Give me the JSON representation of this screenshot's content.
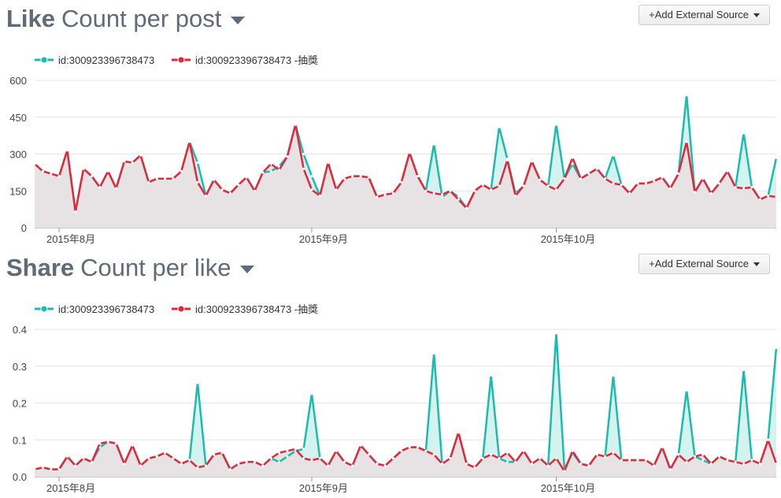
{
  "panels": [
    {
      "title_bold": "Like",
      "title_rest": " Count per post",
      "button_label": "+Add External Source"
    },
    {
      "title_bold": "Share",
      "title_rest": " Count per like",
      "button_label": "+Add External Source"
    }
  ],
  "colors": {
    "teal": "#1bbcad",
    "red": "#e4283c",
    "fill": "#e7e2e3",
    "teal_fill": "#d4f3ef",
    "grid": "#e6e6e6"
  },
  "chart_data": [
    {
      "type": "line",
      "y_ticks": [
        "0",
        "150",
        "300",
        "450",
        "600"
      ],
      "ylim": [
        0,
        600
      ],
      "x_tick_labels": [
        "2015年8月",
        "2015年9月",
        "2015年10月"
      ],
      "x_tick_index": [
        3,
        34,
        64
      ],
      "legend_placement": "top-left",
      "series": [
        {
          "name": "id:300923396738473",
          "color": "teal",
          "values": [
            260,
            230,
            220,
            210,
            315,
            65,
            240,
            210,
            165,
            230,
            160,
            270,
            265,
            295,
            185,
            200,
            200,
            200,
            230,
            350,
            265,
            130,
            195,
            155,
            140,
            175,
            205,
            150,
            225,
            230,
            250,
            290,
            420,
            300,
            210,
            130,
            265,
            155,
            200,
            210,
            210,
            205,
            125,
            135,
            140,
            185,
            305,
            210,
            150,
            340,
            125,
            150,
            125,
            80,
            150,
            175,
            155,
            410,
            280,
            140,
            170,
            270,
            195,
            170,
            420,
            200,
            260,
            200,
            220,
            240,
            200,
            295,
            175,
            140,
            180,
            180,
            190,
            205,
            160,
            220,
            540,
            145,
            200,
            140,
            180,
            230,
            165,
            385,
            165,
            115,
            130,
            285
          ],
          "values_note": ""
        },
        {
          "name": "id:300923396738473 -抽獎",
          "color": "red",
          "values": [
            260,
            230,
            220,
            210,
            315,
            65,
            240,
            210,
            165,
            230,
            160,
            270,
            265,
            295,
            185,
            200,
            200,
            200,
            230,
            350,
            185,
            130,
            195,
            155,
            140,
            175,
            205,
            150,
            225,
            260,
            235,
            290,
            420,
            240,
            155,
            130,
            265,
            155,
            200,
            210,
            210,
            205,
            125,
            135,
            140,
            185,
            305,
            210,
            150,
            140,
            135,
            150,
            115,
            80,
            150,
            175,
            155,
            170,
            275,
            130,
            170,
            270,
            195,
            170,
            155,
            200,
            285,
            200,
            220,
            240,
            200,
            180,
            175,
            140,
            180,
            180,
            190,
            205,
            160,
            220,
            350,
            145,
            200,
            140,
            180,
            230,
            165,
            160,
            165,
            115,
            130,
            125
          ]
        }
      ]
    },
    {
      "type": "line",
      "y_ticks": [
        "0.0",
        "0.1",
        "0.2",
        "0.3",
        "0.4"
      ],
      "ylim": [
        0,
        0.4
      ],
      "x_tick_labels": [
        "2015年8月",
        "2015年9月",
        "2015年10月"
      ],
      "x_tick_index": [
        3,
        34,
        64
      ],
      "legend_placement": "top-left",
      "series": [
        {
          "name": "id:300923396738473",
          "color": "teal",
          "values": [
            0.02,
            0.025,
            0.02,
            0.02,
            0.055,
            0.03,
            0.05,
            0.04,
            0.08,
            0.095,
            0.09,
            0.035,
            0.085,
            0.03,
            0.05,
            0.055,
            0.065,
            0.05,
            0.035,
            0.045,
            0.255,
            0.03,
            0.06,
            0.065,
            0.02,
            0.035,
            0.04,
            0.04,
            0.03,
            0.05,
            0.04,
            0.055,
            0.07,
            0.075,
            0.225,
            0.05,
            0.03,
            0.07,
            0.04,
            0.03,
            0.085,
            0.06,
            0.035,
            0.03,
            0.05,
            0.07,
            0.08,
            0.08,
            0.07,
            0.335,
            0.035,
            0.05,
            0.12,
            0.035,
            0.025,
            0.05,
            0.275,
            0.05,
            0.04,
            0.04,
            0.07,
            0.035,
            0.05,
            0.03,
            0.39,
            0.02,
            0.065,
            0.035,
            0.03,
            0.06,
            0.055,
            0.275,
            0.045,
            0.045,
            0.045,
            0.045,
            0.03,
            0.08,
            0.02,
            0.06,
            0.235,
            0.055,
            0.045,
            0.035,
            0.055,
            0.045,
            0.04,
            0.29,
            0.045,
            0.035,
            0.1,
            0.35
          ]
        },
        {
          "name": "id:300923396738473 -抽獎",
          "color": "red",
          "values": [
            0.02,
            0.025,
            0.02,
            0.02,
            0.055,
            0.03,
            0.05,
            0.04,
            0.09,
            0.095,
            0.09,
            0.035,
            0.085,
            0.03,
            0.05,
            0.055,
            0.065,
            0.05,
            0.035,
            0.045,
            0.025,
            0.03,
            0.06,
            0.065,
            0.02,
            0.035,
            0.04,
            0.04,
            0.03,
            0.05,
            0.065,
            0.07,
            0.075,
            0.05,
            0.045,
            0.05,
            0.03,
            0.07,
            0.04,
            0.03,
            0.085,
            0.06,
            0.035,
            0.03,
            0.05,
            0.07,
            0.08,
            0.08,
            0.07,
            0.06,
            0.035,
            0.05,
            0.12,
            0.035,
            0.025,
            0.05,
            0.06,
            0.05,
            0.065,
            0.04,
            0.07,
            0.035,
            0.05,
            0.03,
            0.05,
            0.015,
            0.07,
            0.035,
            0.03,
            0.06,
            0.055,
            0.065,
            0.045,
            0.045,
            0.045,
            0.045,
            0.03,
            0.08,
            0.02,
            0.06,
            0.04,
            0.055,
            0.06,
            0.035,
            0.055,
            0.045,
            0.04,
            0.035,
            0.045,
            0.035,
            0.1,
            0.035
          ]
        }
      ]
    }
  ]
}
